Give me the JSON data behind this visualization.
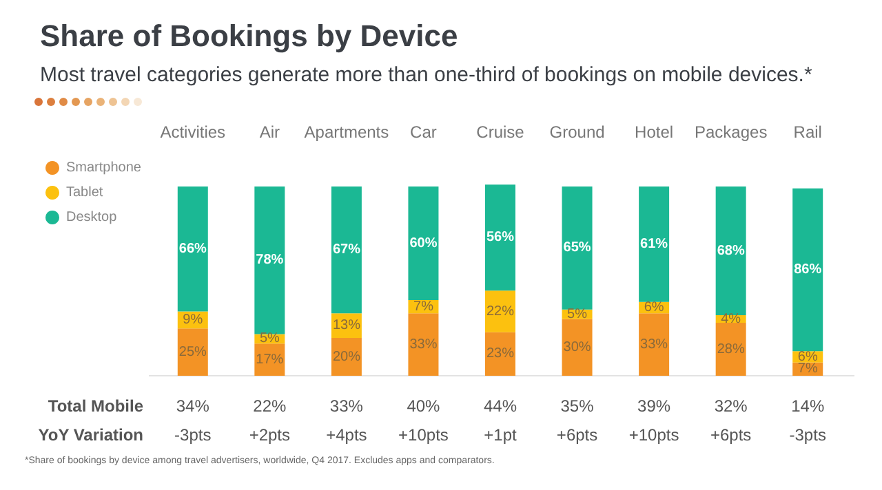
{
  "chart_data": {
    "type": "bar",
    "title": "Share of Bookings by Device",
    "subtitle": "Most travel categories generate more than one-third of bookings on mobile devices.*",
    "categories": [
      "Activities",
      "Air",
      "Apartments",
      "Car",
      "Cruise",
      "Ground",
      "Hotel",
      "Packages",
      "Rail"
    ],
    "stacked": true,
    "legend": "left",
    "series": [
      {
        "name": "Smartphone",
        "color": "#f39325",
        "values": [
          25,
          17,
          20,
          33,
          23,
          30,
          33,
          28,
          7
        ],
        "value_labels": [
          "25%",
          "17%",
          "20%",
          "33%",
          "23%",
          "30%",
          "33%",
          "28%",
          "7%"
        ]
      },
      {
        "name": "Tablet",
        "color": "#fcc10f",
        "values": [
          9,
          5,
          13,
          7,
          22,
          5,
          6,
          4,
          6
        ],
        "value_labels": [
          "9%",
          "5%",
          "13%",
          "7%",
          "22%",
          "5%",
          "6%",
          "4%",
          "6%"
        ]
      },
      {
        "name": "Desktop",
        "color": "#1bb894",
        "values": [
          66,
          78,
          67,
          60,
          56,
          65,
          61,
          68,
          86
        ],
        "value_labels": [
          "66%",
          "78%",
          "67%",
          "60%",
          "56%",
          "65%",
          "61%",
          "68%",
          "86%"
        ]
      }
    ],
    "annotations": [
      "Total Mobile",
      "34%",
      "22%",
      "33%",
      "40%",
      "44%",
      "35%",
      "39%",
      "32%",
      "14%",
      "YoY Variation",
      "-3pts",
      "+2pts",
      "+4pts",
      "+10pts",
      "+1pt",
      "+6pts",
      "+10pts",
      "+6pts",
      "-3pts",
      "*Share of bookings by device among travel advertisers, worldwide, Q4 2017. Excludes apps and comparators."
    ]
  }
}
